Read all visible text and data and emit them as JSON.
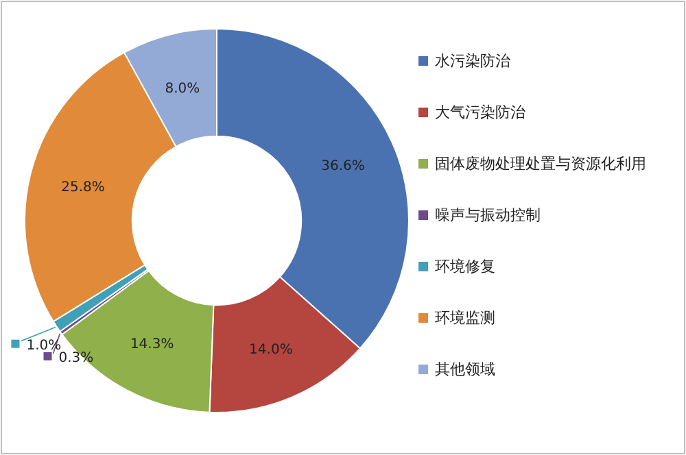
{
  "chart_data": {
    "type": "donut",
    "categories": [
      "水污染防治",
      "大气污染防治",
      "固体废物处理处置与资源化利用",
      "噪声与振动控制",
      "环境修复",
      "环境监测",
      "其他领域"
    ],
    "values": [
      36.6,
      14.0,
      14.3,
      0.3,
      1.0,
      25.8,
      8.0
    ],
    "colors": [
      "#4a72b0",
      "#b5453f",
      "#8fb04a",
      "#6e4a8e",
      "#3fa0b8",
      "#e08a3a",
      "#93aad6"
    ],
    "value_labels": [
      "36.6%",
      "14.0%",
      "14.3%",
      "0.3%",
      "1.0%",
      "25.8%",
      "8.0%"
    ],
    "legend": "right"
  }
}
